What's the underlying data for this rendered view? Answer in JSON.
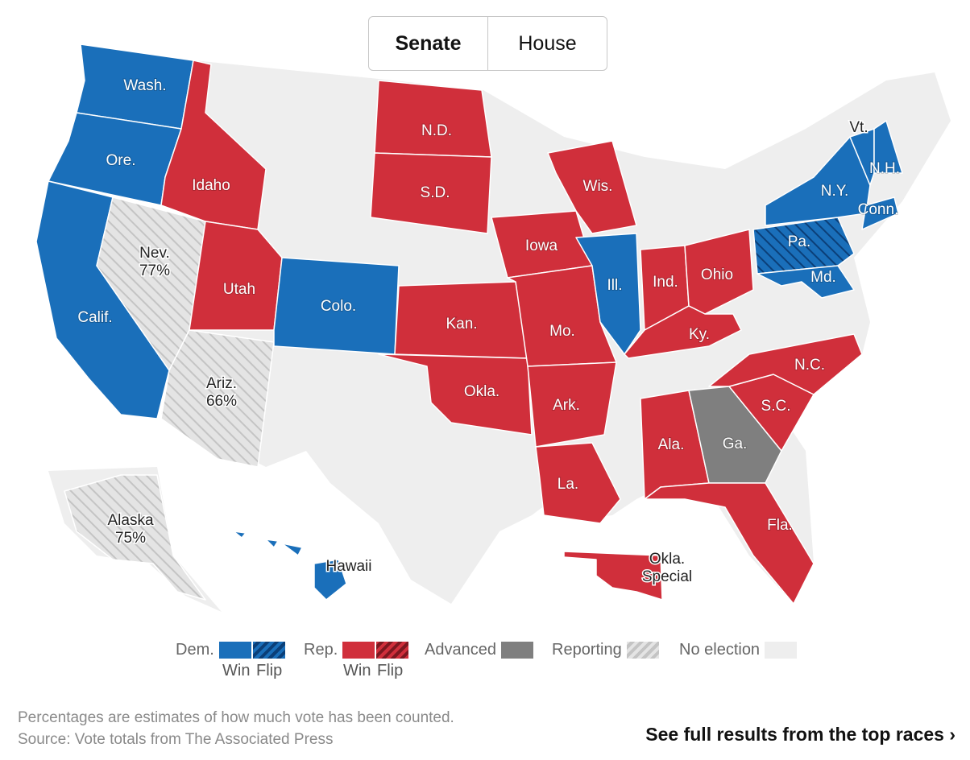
{
  "toggle": {
    "senate": "Senate",
    "house": "House",
    "selected": "Senate"
  },
  "colors": {
    "dem": "#1a6fba",
    "dem_flip": "#0a4a8c",
    "rep": "#d02f3b",
    "rep_flip": "#a3232e",
    "advanced": "#7f7f7f",
    "reporting": "#d9d9d9",
    "no_election": "#eeeeee"
  },
  "states": [
    {
      "name": "Wash.",
      "status": "dem"
    },
    {
      "name": "Ore.",
      "status": "dem"
    },
    {
      "name": "Calif.",
      "status": "dem"
    },
    {
      "name": "Nev.",
      "status": "reporting",
      "pct": "77%"
    },
    {
      "name": "Ariz.",
      "status": "reporting",
      "pct": "66%"
    },
    {
      "name": "Idaho",
      "status": "rep"
    },
    {
      "name": "Utah",
      "status": "rep"
    },
    {
      "name": "Colo.",
      "status": "dem"
    },
    {
      "name": "N.D.",
      "status": "rep"
    },
    {
      "name": "S.D.",
      "status": "rep"
    },
    {
      "name": "Kan.",
      "status": "rep"
    },
    {
      "name": "Okla.",
      "status": "rep"
    },
    {
      "name": "Iowa",
      "status": "rep"
    },
    {
      "name": "Mo.",
      "status": "rep"
    },
    {
      "name": "Ark.",
      "status": "rep"
    },
    {
      "name": "La.",
      "status": "rep"
    },
    {
      "name": "Wis.",
      "status": "rep"
    },
    {
      "name": "Ill.",
      "status": "dem"
    },
    {
      "name": "Ind.",
      "status": "rep"
    },
    {
      "name": "Ohio",
      "status": "rep"
    },
    {
      "name": "Ky.",
      "status": "rep"
    },
    {
      "name": "Ala.",
      "status": "rep"
    },
    {
      "name": "Ga.",
      "status": "advanced"
    },
    {
      "name": "Fla.",
      "status": "rep"
    },
    {
      "name": "S.C.",
      "status": "rep"
    },
    {
      "name": "N.C.",
      "status": "rep"
    },
    {
      "name": "Pa.",
      "status": "dem_flip"
    },
    {
      "name": "Md.",
      "status": "dem"
    },
    {
      "name": "N.Y.",
      "status": "dem"
    },
    {
      "name": "Conn.",
      "status": "dem"
    },
    {
      "name": "Vt.",
      "status": "dem"
    },
    {
      "name": "N.H.",
      "status": "dem"
    },
    {
      "name": "Alaska",
      "status": "reporting",
      "pct": "75%"
    },
    {
      "name": "Hawaii",
      "status": "dem"
    },
    {
      "name": "Okla. Special",
      "status": "rep"
    }
  ],
  "legend": {
    "dem": "Dem.",
    "rep": "Rep.",
    "advanced": "Advanced",
    "reporting": "Reporting",
    "no_election": "No election",
    "win": "Win",
    "flip": "Flip"
  },
  "footer": {
    "note": "Percentages are estimates of how much vote has been counted.",
    "source": "Source: Vote totals from The Associated Press",
    "cta": "See full results from the top races ›"
  }
}
